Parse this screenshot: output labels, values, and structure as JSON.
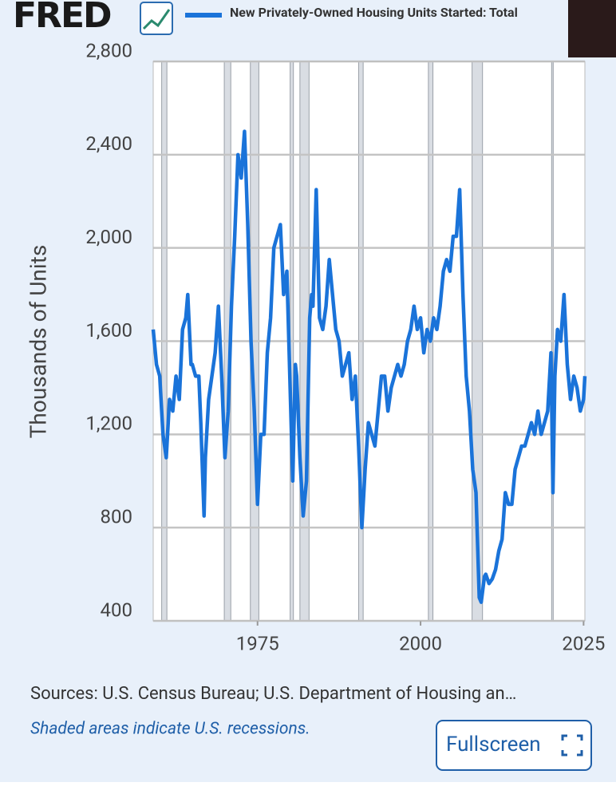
{
  "logo": "FRED",
  "chart_data": {
    "type": "line",
    "series": [
      {
        "name": "New Privately-Owned Housing Units Started: Total",
        "color": "#1a73d9",
        "values": [
          1650,
          1500,
          1450,
          1200,
          1100,
          1350,
          1300,
          1450,
          1350,
          1650,
          1700,
          1800,
          1500,
          1500,
          1450,
          1450,
          1250,
          850,
          1100,
          1350,
          1450,
          1550,
          1750,
          1450,
          1100,
          1300,
          1750,
          2050,
          2400,
          2300,
          2500,
          2100,
          1600,
          1300,
          900,
          1200,
          1200,
          1550,
          1700,
          2000,
          2050,
          2100,
          1800,
          1900,
          1400,
          1000,
          1500,
          1450,
          1100,
          850,
          1000,
          1700,
          1800,
          1750,
          2250,
          1700,
          1650,
          1750,
          1950,
          1800,
          1650,
          1600,
          1450,
          1500,
          1550,
          1350,
          1450,
          1150,
          800,
          1050,
          1250,
          1200,
          1150,
          1300,
          1450,
          1450,
          1300,
          1400,
          1450,
          1500,
          1450,
          1500,
          1600,
          1650,
          1750,
          1650,
          1700,
          1550,
          1650,
          1600,
          1700,
          1650,
          1750,
          1900,
          1950,
          1900,
          2050,
          2050,
          2250,
          1800,
          1450,
          1300,
          1050,
          950,
          500,
          480,
          590,
          600,
          560,
          580,
          620,
          700,
          750,
          950,
          900,
          900,
          1050,
          1100,
          1150,
          1150,
          1200,
          1250,
          1200,
          1300,
          1200,
          1250,
          1300,
          1550,
          950,
          1450,
          1650,
          1600,
          1800,
          1500,
          1350,
          1450,
          1400,
          1300,
          1350,
          1450
        ]
      }
    ],
    "x": [
      1959,
      1959.5,
      1960,
      1960.5,
      1961,
      1961.5,
      1962,
      1962.5,
      1963,
      1963.5,
      1964,
      1964.3,
      1964.8,
      1965,
      1965.5,
      1966,
      1966.3,
      1966.8,
      1967,
      1967.5,
      1968,
      1968.5,
      1969,
      1969.5,
      1970,
      1970.5,
      1971,
      1971.5,
      1972,
      1972.5,
      1973,
      1973.5,
      1974,
      1974.5,
      1975,
      1975.5,
      1976,
      1976.5,
      1977,
      1977.5,
      1978,
      1978.5,
      1979,
      1979.5,
      1980,
      1980.4,
      1980.8,
      1981,
      1981.5,
      1982,
      1982.5,
      1983,
      1983.3,
      1983.5,
      1984,
      1984.5,
      1985,
      1985.5,
      1986,
      1986.5,
      1987,
      1987.5,
      1988,
      1988.5,
      1989,
      1989.5,
      1990,
      1990.5,
      1991,
      1991.5,
      1992,
      1992.5,
      1993,
      1993.5,
      1994,
      1994.5,
      1995,
      1995.5,
      1996,
      1996.5,
      1997,
      1997.5,
      1998,
      1998.5,
      1999,
      1999.5,
      2000,
      2000.5,
      2001,
      2001.5,
      2002,
      2002.5,
      2003,
      2003.5,
      2004,
      2004.5,
      2005,
      2005.5,
      2006,
      2006.5,
      2007,
      2007.5,
      2008,
      2008.5,
      2009,
      2009.3,
      2009.8,
      2010,
      2010.5,
      2011,
      2011.5,
      2012,
      2012.5,
      2013,
      2013.5,
      2014,
      2014.5,
      2015,
      2015.5,
      2016,
      2016.5,
      2017,
      2017.5,
      2018,
      2018.5,
      2019,
      2019.5,
      2020,
      2020.3,
      2020.6,
      2021,
      2021.5,
      2022,
      2022.5,
      2023,
      2023.5,
      2024,
      2024.5,
      2025,
      2025.2
    ],
    "xlim": [
      1959,
      2025.2
    ],
    "xticks": [
      1975,
      2000,
      2025
    ],
    "ylim": [
      400,
      2800
    ],
    "yticks": [
      400,
      800,
      {
        "value": 1200,
        "label": "1,200"
      },
      {
        "value": 1600,
        "label": "1,600"
      },
      {
        "value": 2000,
        "label": "2,000"
      },
      {
        "value": 2400,
        "label": "2,400"
      },
      {
        "value": 2800,
        "label": "2,800"
      }
    ],
    "grid": true,
    "y_label": "Thousands of Units",
    "recessions": [
      [
        1960.3,
        1961.1
      ],
      [
        1969.9,
        1970.9
      ],
      [
        1973.9,
        1975.2
      ],
      [
        1980.0,
        1980.5
      ],
      [
        1981.5,
        1982.9
      ],
      [
        1990.5,
        1991.2
      ],
      [
        2001.2,
        2001.9
      ],
      [
        2007.9,
        2009.5
      ],
      [
        2020.1,
        2020.3
      ]
    ],
    "source": "Sources: U.S. Census Bureau; U.S. Department of Housing an…",
    "note": "Shaded areas indicate U.S. recessions."
  },
  "button": "Fullscreen"
}
